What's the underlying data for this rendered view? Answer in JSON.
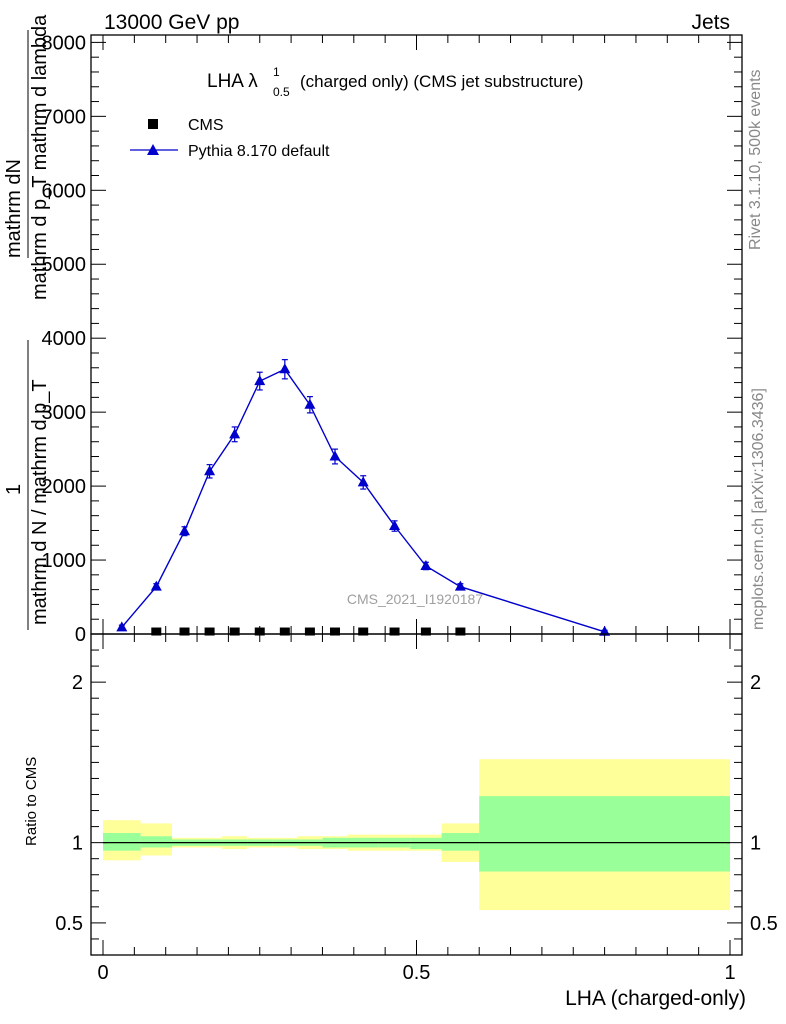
{
  "header": {
    "left": "13000 GeV pp",
    "right": "Jets"
  },
  "side_labels": {
    "rivet": "Rivet 3.1.10,  500k events",
    "mcplots": "mcplots.cern.ch [arXiv:1306.3436]"
  },
  "chart_data": [
    {
      "type": "line",
      "title_main": "LHA λ",
      "title_sup": "1",
      "title_sub": "0.5",
      "title_rest": "(charged only) (CMS jet substructure)",
      "watermark": "CMS_2021_I1920187",
      "ylabel_numerator": "mathrm dN",
      "ylabel_upper_denominator": "mathrm d p_T mathrm d lambda",
      "ylabel_frac_one": "1",
      "ylabel_lower_denominator": "mathrm d N / mathrm d p_T",
      "ylim": [
        0,
        8000
      ],
      "xlim": [
        0,
        1
      ],
      "yticks": [
        {
          "v": 0,
          "label": "0"
        },
        {
          "v": 1000,
          "label": "1000"
        },
        {
          "v": 2000,
          "label": "2000"
        },
        {
          "v": 3000,
          "label": "3000"
        },
        {
          "v": 4000,
          "label": "4000"
        },
        {
          "v": 5000,
          "label": "5000"
        },
        {
          "v": 6000,
          "label": "6000"
        },
        {
          "v": 7000,
          "label": "7000"
        },
        {
          "v": 8000,
          "label": "8000"
        }
      ],
      "legend": [
        {
          "name": "CMS",
          "marker": "square",
          "color": "#000000"
        },
        {
          "name": "Pythia 8.170 default",
          "marker": "triangle",
          "color": "#0000cc"
        }
      ],
      "series": [
        {
          "name": "CMS",
          "color": "#000000",
          "x": [
            0.085,
            0.13,
            0.17,
            0.21,
            0.25,
            0.29,
            0.33,
            0.37,
            0.415,
            0.465,
            0.515,
            0.57
          ],
          "y": [
            20,
            20,
            20,
            20,
            20,
            20,
            20,
            20,
            20,
            20,
            20,
            20
          ]
        },
        {
          "name": "Pythia 8.170 default",
          "color": "#0000cc",
          "x": [
            0.03,
            0.085,
            0.13,
            0.17,
            0.21,
            0.25,
            0.29,
            0.33,
            0.37,
            0.415,
            0.465,
            0.515,
            0.57,
            0.8
          ],
          "y": [
            90,
            640,
            1390,
            2200,
            2700,
            3420,
            3580,
            3100,
            2400,
            2050,
            1460,
            920,
            640,
            30
          ],
          "yerr": [
            30,
            40,
            60,
            90,
            100,
            120,
            130,
            110,
            100,
            90,
            70,
            50,
            40,
            20
          ]
        }
      ]
    },
    {
      "type": "area",
      "ylabel": "Ratio to CMS",
      "xlabel": "LHA (charged-only)",
      "ylim": [
        0.3,
        2.3
      ],
      "xlim": [
        0,
        1
      ],
      "xticks": [
        {
          "v": 0,
          "label": "0"
        },
        {
          "v": 0.5,
          "label": "0.5"
        },
        {
          "v": 1,
          "label": "1"
        }
      ],
      "yticks": [
        {
          "v": 0.5,
          "label": "0.5"
        },
        {
          "v": 1,
          "label": "1"
        },
        {
          "v": 2,
          "label": "2"
        }
      ],
      "band_colors": {
        "outer": "#ffff99",
        "inner": "#99ff99"
      },
      "bands": [
        {
          "x0": 0.0,
          "x1": 0.06,
          "outer": [
            0.89,
            1.14
          ],
          "inner": [
            0.95,
            1.06
          ]
        },
        {
          "x0": 0.06,
          "x1": 0.11,
          "outer": [
            0.92,
            1.12
          ],
          "inner": [
            0.97,
            1.04
          ]
        },
        {
          "x0": 0.11,
          "x1": 0.15,
          "outer": [
            0.97,
            1.03
          ],
          "inner": [
            0.98,
            1.02
          ]
        },
        {
          "x0": 0.15,
          "x1": 0.19,
          "outer": [
            0.97,
            1.03
          ],
          "inner": [
            0.98,
            1.02
          ]
        },
        {
          "x0": 0.19,
          "x1": 0.23,
          "outer": [
            0.96,
            1.04
          ],
          "inner": [
            0.98,
            1.02
          ]
        },
        {
          "x0": 0.23,
          "x1": 0.27,
          "outer": [
            0.97,
            1.03
          ],
          "inner": [
            0.98,
            1.02
          ]
        },
        {
          "x0": 0.27,
          "x1": 0.31,
          "outer": [
            0.97,
            1.03
          ],
          "inner": [
            0.98,
            1.02
          ]
        },
        {
          "x0": 0.31,
          "x1": 0.35,
          "outer": [
            0.96,
            1.04
          ],
          "inner": [
            0.98,
            1.02
          ]
        },
        {
          "x0": 0.35,
          "x1": 0.39,
          "outer": [
            0.96,
            1.04
          ],
          "inner": [
            0.97,
            1.03
          ]
        },
        {
          "x0": 0.39,
          "x1": 0.44,
          "outer": [
            0.95,
            1.05
          ],
          "inner": [
            0.97,
            1.03
          ]
        },
        {
          "x0": 0.44,
          "x1": 0.49,
          "outer": [
            0.95,
            1.05
          ],
          "inner": [
            0.97,
            1.03
          ]
        },
        {
          "x0": 0.49,
          "x1": 0.54,
          "outer": [
            0.95,
            1.05
          ],
          "inner": [
            0.96,
            1.03
          ]
        },
        {
          "x0": 0.54,
          "x1": 0.6,
          "outer": [
            0.88,
            1.12
          ],
          "inner": [
            0.95,
            1.06
          ]
        },
        {
          "x0": 0.6,
          "x1": 1.0,
          "outer": [
            0.58,
            1.52
          ],
          "inner": [
            0.82,
            1.29
          ]
        }
      ],
      "ratio_line": 1
    }
  ]
}
